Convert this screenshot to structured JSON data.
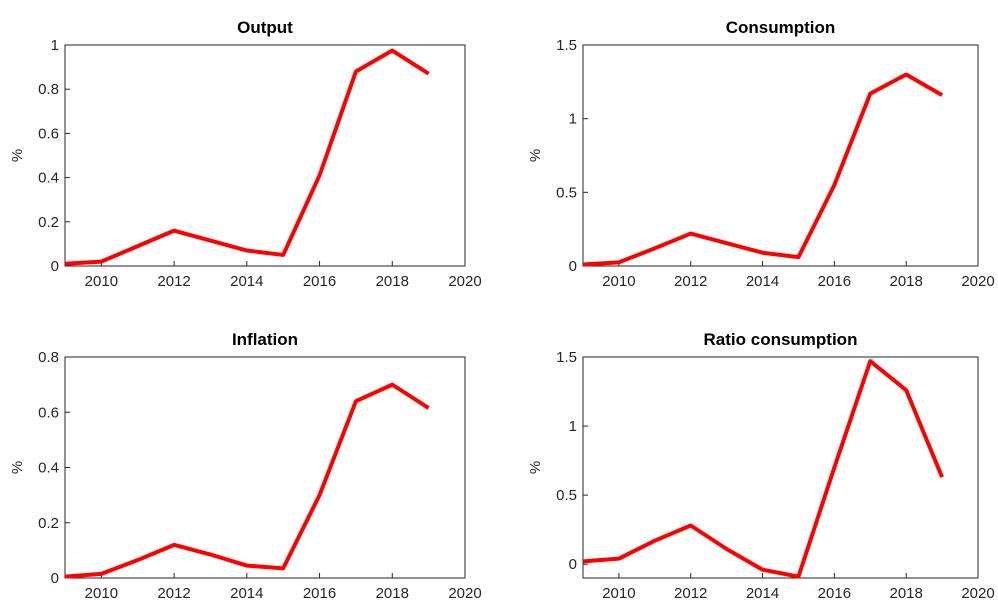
{
  "chart_data": [
    {
      "type": "line",
      "title": "Output",
      "ylabel": "%",
      "color": "#ff0000",
      "x": [
        2009,
        2010,
        2011,
        2012,
        2013,
        2014,
        2015,
        2016,
        2017,
        2018,
        2019
      ],
      "values": [
        0.01,
        0.02,
        0.09,
        0.16,
        0.115,
        0.07,
        0.05,
        0.41,
        0.88,
        0.975,
        0.87
      ],
      "xlim": [
        2009,
        2020
      ],
      "xticks": [
        2010,
        2012,
        2014,
        2016,
        2018,
        2020
      ],
      "ylim": [
        0,
        1
      ],
      "yticks": [
        0,
        0.2,
        0.4,
        0.6,
        0.8,
        1
      ]
    },
    {
      "type": "line",
      "title": "Consumption",
      "ylabel": "%",
      "color": "#ff0000",
      "x": [
        2009,
        2010,
        2011,
        2012,
        2013,
        2014,
        2015,
        2016,
        2017,
        2018,
        2019
      ],
      "values": [
        0.01,
        0.025,
        0.12,
        0.22,
        0.155,
        0.09,
        0.06,
        0.55,
        1.17,
        1.3,
        1.16
      ],
      "xlim": [
        2009,
        2020
      ],
      "xticks": [
        2010,
        2012,
        2014,
        2016,
        2018,
        2020
      ],
      "ylim": [
        0,
        1.5
      ],
      "yticks": [
        0,
        0.5,
        1,
        1.5
      ]
    },
    {
      "type": "line",
      "title": "Inflation",
      "ylabel": "%",
      "color": "#ff0000",
      "x": [
        2009,
        2010,
        2011,
        2012,
        2013,
        2014,
        2015,
        2016,
        2017,
        2018,
        2019
      ],
      "values": [
        0.005,
        0.015,
        0.065,
        0.12,
        0.085,
        0.045,
        0.035,
        0.3,
        0.64,
        0.7,
        0.615
      ],
      "xlim": [
        2009,
        2020
      ],
      "xticks": [
        2010,
        2012,
        2014,
        2016,
        2018,
        2020
      ],
      "ylim": [
        0,
        0.8
      ],
      "yticks": [
        0,
        0.2,
        0.4,
        0.6,
        0.8
      ]
    },
    {
      "type": "line",
      "title": "Ratio consumption",
      "ylabel": "%",
      "color": "#ff0000",
      "x": [
        2009,
        2010,
        2011,
        2012,
        2013,
        2014,
        2015,
        2016,
        2017,
        2018,
        2019
      ],
      "values": [
        0.02,
        0.04,
        0.17,
        0.28,
        0.11,
        -0.04,
        -0.09,
        0.7,
        1.47,
        1.26,
        0.63
      ],
      "xlim": [
        2009,
        2020
      ],
      "xticks": [
        2010,
        2012,
        2014,
        2016,
        2018,
        2020
      ],
      "ylim": [
        -0.1,
        1.5
      ],
      "yticks": [
        0,
        0.5,
        1,
        1.5
      ]
    }
  ]
}
